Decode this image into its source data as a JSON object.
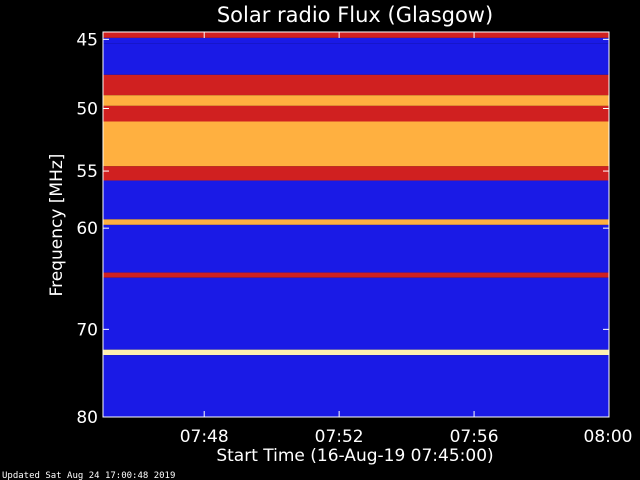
{
  "chart_data": {
    "type": "heatmap",
    "title": "Solar radio Flux (Glasgow)",
    "xlabel": "Start Time (16-Aug-19 07:45:00)",
    "ylabel": "Frequency [MHz]",
    "footer": "Updated Sat Aug 24 17:00:48 2019",
    "x_range": [
      "07:45",
      "08:00"
    ],
    "y_range": [
      80,
      44.5
    ],
    "x_ticks": [
      "07:48",
      "07:52",
      "07:56",
      "08:00"
    ],
    "y_ticks": [
      45,
      50,
      55,
      60,
      70,
      80
    ],
    "colors": {
      "background": "#000000",
      "low": "#1a1ae6",
      "mid": "#d02020",
      "high": "#ffb040",
      "peak": "#fff0b0"
    },
    "bands": [
      {
        "from": 44.5,
        "to": 44.9,
        "level": "mid"
      },
      {
        "from": 44.9,
        "to": 45.3,
        "level": "low"
      },
      {
        "from": 45.3,
        "to": 47.5,
        "level": "low"
      },
      {
        "from": 47.5,
        "to": 49.0,
        "level": "mid"
      },
      {
        "from": 49.0,
        "to": 49.8,
        "level": "high"
      },
      {
        "from": 49.8,
        "to": 51.0,
        "level": "mid"
      },
      {
        "from": 51.0,
        "to": 54.6,
        "level": "high"
      },
      {
        "from": 54.6,
        "to": 55.8,
        "level": "mid"
      },
      {
        "from": 55.8,
        "to": 59.2,
        "level": "low"
      },
      {
        "from": 59.2,
        "to": 59.7,
        "level": "high"
      },
      {
        "from": 59.7,
        "to": 64.2,
        "level": "low"
      },
      {
        "from": 64.2,
        "to": 64.7,
        "level": "mid"
      },
      {
        "from": 64.7,
        "to": 72.2,
        "level": "low"
      },
      {
        "from": 72.2,
        "to": 72.8,
        "level": "peak"
      },
      {
        "from": 72.8,
        "to": 80.0,
        "level": "low"
      }
    ]
  }
}
